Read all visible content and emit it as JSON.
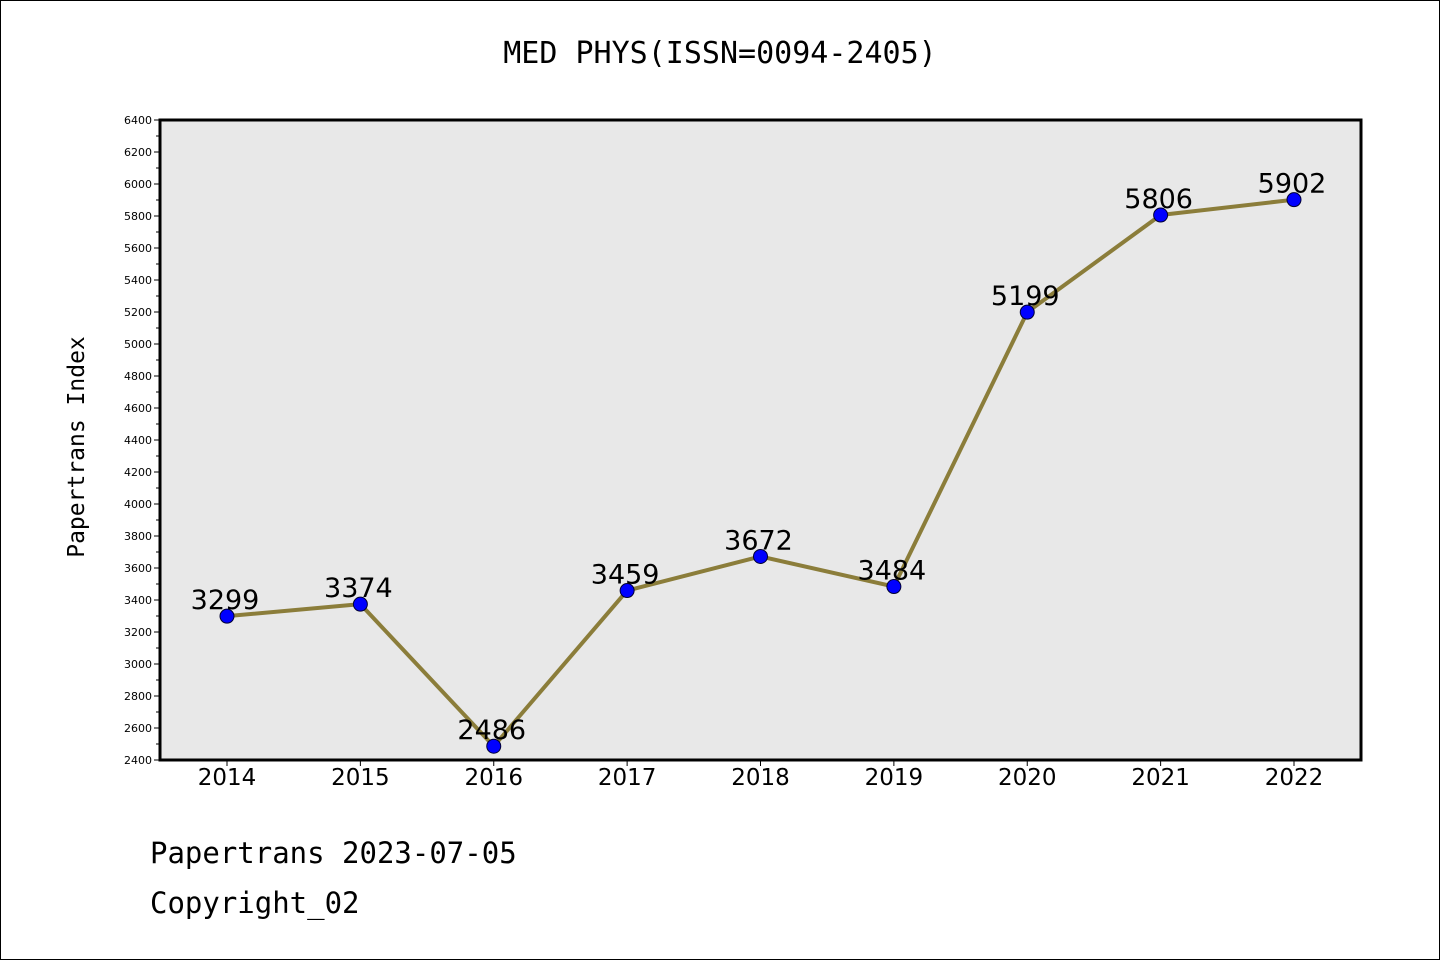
{
  "chart_data": {
    "type": "line",
    "title": "MED PHYS(ISSN=0094-2405)",
    "xlabel": "",
    "ylabel": "Papertrans Index",
    "categories": [
      "2014",
      "2015",
      "2016",
      "2017",
      "2018",
      "2019",
      "2020",
      "2021",
      "2022"
    ],
    "series": [
      {
        "values": [
          3299,
          3374,
          2486,
          3459,
          3672,
          3484,
          5199,
          5806,
          5902
        ],
        "line_color": "#8b7d3a",
        "marker_color": "#0000ff"
      }
    ],
    "data_labels": [
      "3299",
      "3374",
      "2486",
      "3459",
      "3672",
      "3484",
      "5199",
      "5806",
      "5902"
    ],
    "ylim": [
      2400,
      6400
    ],
    "yticks": [
      2400,
      2600,
      2800,
      3000,
      3200,
      3400,
      3600,
      3800,
      4000,
      4200,
      4400,
      4600,
      4800,
      5000,
      5200,
      5400,
      5600,
      5800,
      6000,
      6200,
      6400
    ],
    "ytick_labels": [
      "2400",
      "2600",
      "2800",
      "3000",
      "3200",
      "3400",
      "3600",
      "3800",
      "4000",
      "4200",
      "4400",
      "4600",
      "4800",
      "5000",
      "5200",
      "5400",
      "5600",
      "5800",
      "6000",
      "6200",
      "6400"
    ],
    "plot_background": "#e8e8e8",
    "grid": false,
    "legend": "none"
  },
  "footer": {
    "line1": "Papertrans 2023-07-05",
    "line2": "Copyright_02"
  }
}
